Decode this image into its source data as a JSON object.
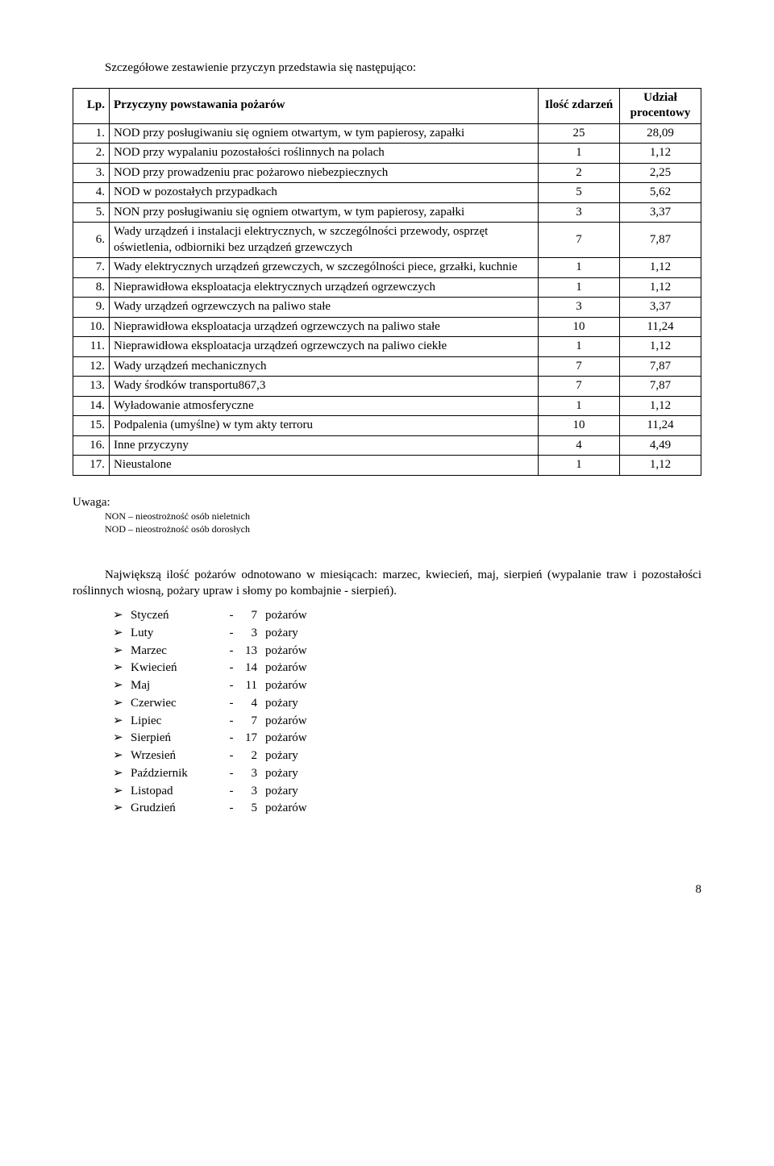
{
  "intro": "Szczegółowe zestawienie przyczyn przedstawia się następująco:",
  "table": {
    "headers": {
      "lp": "Lp.",
      "desc": "Przyczyny powstawania pożarów",
      "count": "Ilość zdarzeń",
      "pct": "Udział procentowy"
    },
    "rows": [
      {
        "lp": "1.",
        "desc": "NOD przy posługiwaniu się ogniem otwartym, w tym papierosy, zapałki",
        "count": "25",
        "pct": "28,09"
      },
      {
        "lp": "2.",
        "desc": "NOD przy wypalaniu pozostałości roślinnych na polach",
        "count": "1",
        "pct": "1,12"
      },
      {
        "lp": "3.",
        "desc": "NOD przy prowadzeniu prac pożarowo niebezpiecznych",
        "count": "2",
        "pct": "2,25"
      },
      {
        "lp": "4.",
        "desc": "NOD w pozostałych przypadkach",
        "count": "5",
        "pct": "5,62"
      },
      {
        "lp": "5.",
        "desc": "NON przy posługiwaniu się ogniem otwartym, w tym papierosy, zapałki",
        "count": "3",
        "pct": "3,37"
      },
      {
        "lp": "6.",
        "desc": "Wady urządzeń i instalacji elektrycznych, w szczególności przewody, osprzęt oświetlenia, odbiorniki bez urządzeń grzewczych",
        "count": "7",
        "pct": "7,87"
      },
      {
        "lp": "7.",
        "desc": "Wady elektrycznych urządzeń grzewczych, w szczególności piece, grzałki, kuchnie",
        "count": "1",
        "pct": "1,12"
      },
      {
        "lp": "8.",
        "desc": "Nieprawidłowa eksploatacja elektrycznych urządzeń ogrzewczych",
        "count": "1",
        "pct": "1,12"
      },
      {
        "lp": "9.",
        "desc": "Wady urządzeń ogrzewczych na paliwo stałe",
        "count": "3",
        "pct": "3,37"
      },
      {
        "lp": "10.",
        "desc": "Nieprawidłowa eksploatacja urządzeń ogrzewczych na paliwo stałe",
        "count": "10",
        "pct": "11,24"
      },
      {
        "lp": "11.",
        "desc": "Nieprawidłowa eksploatacja urządzeń ogrzewczych na paliwo ciekłe",
        "count": "1",
        "pct": "1,12"
      },
      {
        "lp": "12.",
        "desc": "Wady urządzeń mechanicznych",
        "count": "7",
        "pct": "7,87"
      },
      {
        "lp": "13.",
        "desc": "Wady środków transportu867,3",
        "count": "7",
        "pct": "7,87"
      },
      {
        "lp": "14.",
        "desc": "Wyładowanie atmosferyczne",
        "count": "1",
        "pct": "1,12"
      },
      {
        "lp": "15.",
        "desc": "Podpalenia (umyślne) w tym akty terroru",
        "count": "10",
        "pct": "11,24"
      },
      {
        "lp": "16.",
        "desc": "Inne przyczyny",
        "count": "4",
        "pct": "4,49"
      },
      {
        "lp": "17.",
        "desc": "Nieustalone",
        "count": "1",
        "pct": "1,12"
      }
    ]
  },
  "notes": {
    "label": "Uwaga:",
    "line1": "NON – nieostrożność osób nieletnich",
    "line2": "NOD – nieostrożność osób dorosłych"
  },
  "para2": "Największą ilość pożarów odnotowano w miesiącach: marzec, kwiecień, maj, sierpień (wypalanie traw i pozostałości roślinnych wiosną, pożary upraw i słomy po kombajnie - sierpień).",
  "months": [
    {
      "name": "Styczeń",
      "dash": "-",
      "count": "7",
      "unit": "pożarów"
    },
    {
      "name": "Luty",
      "dash": "-",
      "count": "3",
      "unit": "pożary"
    },
    {
      "name": "Marzec",
      "dash": "-",
      "count": "13",
      "unit": "pożarów"
    },
    {
      "name": "Kwiecień",
      "dash": "-",
      "count": "14",
      "unit": "pożarów"
    },
    {
      "name": "Maj",
      "dash": "-",
      "count": "11",
      "unit": "pożarów"
    },
    {
      "name": "Czerwiec",
      "dash": "-",
      "count": "4",
      "unit": "pożary"
    },
    {
      "name": "Lipiec",
      "dash": "-",
      "count": "7",
      "unit": "pożarów"
    },
    {
      "name": "Sierpień",
      "dash": "-",
      "count": "17",
      "unit": "pożarów"
    },
    {
      "name": "Wrzesień",
      "dash": "-",
      "count": "2",
      "unit": "pożary"
    },
    {
      "name": "Październik",
      "dash": "-",
      "count": "3",
      "unit": "pożary"
    },
    {
      "name": "Listopad",
      "dash": "-",
      "count": "3",
      "unit": "pożary"
    },
    {
      "name": "Grudzień",
      "dash": "-",
      "count": "5",
      "unit": "pożarów"
    }
  ],
  "page_number": "8",
  "arrow_glyph": "➢"
}
